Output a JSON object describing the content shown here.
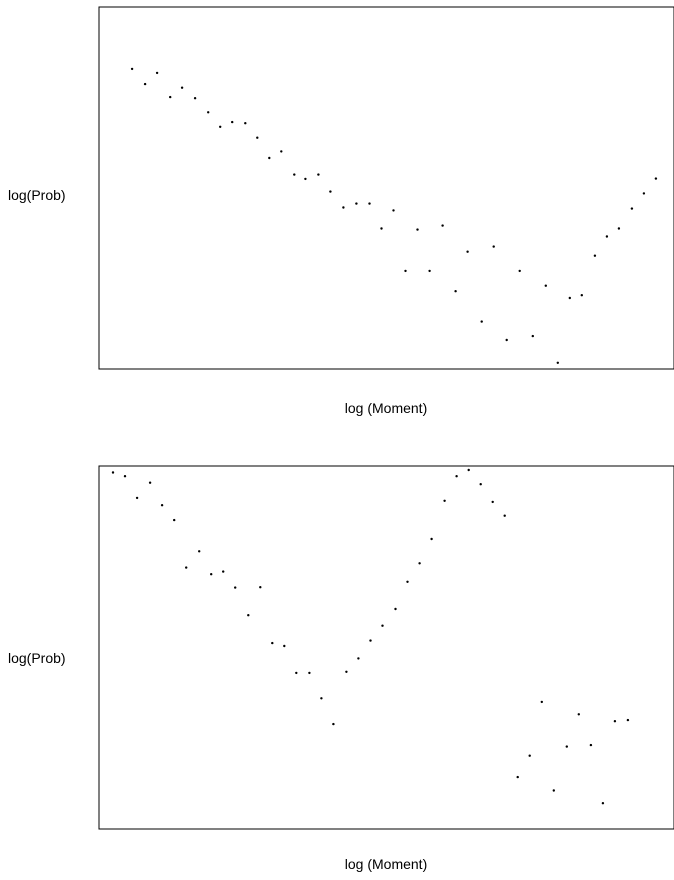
{
  "chart_data": [
    {
      "type": "scatter",
      "title": "",
      "xlabel": "log (Moment)",
      "ylabel": "log(Prob)",
      "xlim": [
        0,
        100
      ],
      "ylim": [
        0,
        100
      ],
      "grid": false,
      "axis_ticks": false,
      "frame": "box",
      "point_color": "#000000",
      "x": [
        5.75,
        8.01,
        10.1,
        12.38,
        14.46,
        16.72,
        18.99,
        21.08,
        23.17,
        25.44,
        27.53,
        29.62,
        31.71,
        33.97,
        35.89,
        38.15,
        40.24,
        42.51,
        44.77,
        47.04,
        49.13,
        51.22,
        53.31,
        55.4,
        57.49,
        59.76,
        62.02,
        64.11,
        66.55,
        68.64,
        70.91,
        73.17,
        75.44,
        77.7,
        79.79,
        81.88,
        83.97,
        86.24,
        88.33,
        90.42,
        92.68,
        94.77,
        96.86
      ],
      "y": [
        82.9,
        78.7,
        81.8,
        75.1,
        77.7,
        74.8,
        70.9,
        66.9,
        68.2,
        67.9,
        63.9,
        58.3,
        60.1,
        53.7,
        52.5,
        53.7,
        49.0,
        44.6,
        45.7,
        45.7,
        38.8,
        43.8,
        27.1,
        38.5,
        27.1,
        39.6,
        21.5,
        32.4,
        13.1,
        33.8,
        8.0,
        27.1,
        9.1,
        23.0,
        1.7,
        19.6,
        20.4,
        31.3,
        36.6,
        38.8,
        44.3,
        48.5,
        52.6
      ]
    },
    {
      "type": "scatter",
      "title": "",
      "xlabel": "log (Moment)",
      "ylabel": "log(Prob)",
      "xlim": [
        0,
        100
      ],
      "ylim": [
        0,
        100
      ],
      "grid": false,
      "axis_ticks": false,
      "frame": "box",
      "point_color": "#000000",
      "x": [
        2.44,
        4.53,
        6.62,
        8.89,
        10.98,
        13.07,
        15.16,
        17.42,
        19.51,
        21.6,
        23.69,
        25.96,
        28.05,
        30.14,
        32.23,
        34.32,
        36.59,
        38.68,
        40.77,
        43.03,
        45.12,
        47.21,
        49.3,
        51.57,
        53.66,
        55.75,
        57.84,
        60.1,
        62.2,
        64.29,
        66.38,
        68.47,
        70.56,
        72.82,
        74.91,
        77.0,
        79.09,
        81.36,
        83.45,
        85.54,
        87.63,
        89.72,
        91.99
      ],
      "y": [
        98.2,
        97.2,
        91.2,
        95.4,
        89.2,
        85.1,
        72.0,
        76.5,
        70.2,
        70.9,
        66.5,
        58.9,
        66.6,
        51.2,
        50.4,
        43.0,
        43.0,
        36.0,
        28.9,
        43.3,
        47.0,
        51.9,
        56.0,
        60.6,
        68.1,
        73.2,
        79.9,
        90.4,
        97.2,
        98.9,
        95.0,
        90.1,
        86.3,
        14.3,
        20.2,
        35.0,
        10.6,
        22.7,
        31.6,
        23.1,
        7.1,
        29.7,
        30.0
      ]
    }
  ]
}
